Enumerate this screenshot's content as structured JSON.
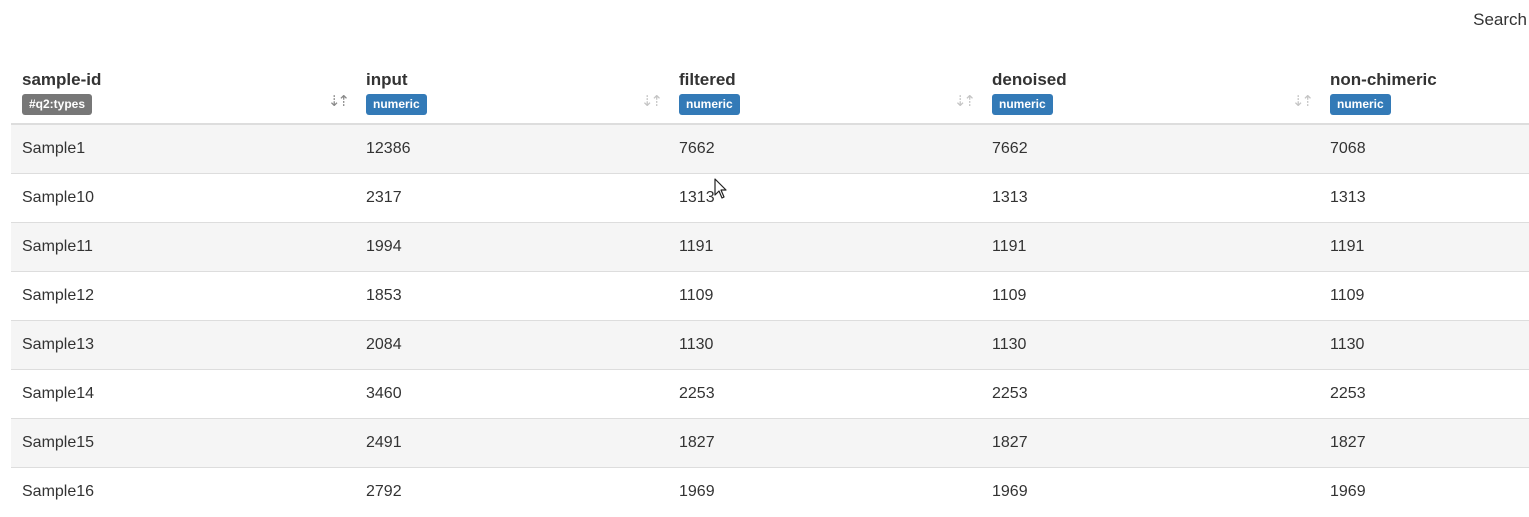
{
  "search": {
    "label": "Search"
  },
  "columns": [
    {
      "title": "sample-id",
      "badge": "#q2:types",
      "badge_type": "types",
      "sort_icon": "sort-numeric-asc-icon",
      "sort_active": true
    },
    {
      "title": "input",
      "badge": "numeric",
      "badge_type": "numeric",
      "sort_icon": "sort-icon",
      "sort_active": false
    },
    {
      "title": "filtered",
      "badge": "numeric",
      "badge_type": "numeric",
      "sort_icon": "sort-icon",
      "sort_active": false
    },
    {
      "title": "denoised",
      "badge": "numeric",
      "badge_type": "numeric",
      "sort_icon": "sort-icon",
      "sort_active": false
    },
    {
      "title": "non-chimeric",
      "badge": "numeric",
      "badge_type": "numeric",
      "sort_icon": "sort-icon",
      "sort_active": false
    }
  ],
  "rows": [
    [
      "Sample1",
      "12386",
      "7662",
      "7662",
      "7068"
    ],
    [
      "Sample10",
      "2317",
      "1313",
      "1313",
      "1313"
    ],
    [
      "Sample11",
      "1994",
      "1191",
      "1191",
      "1191"
    ],
    [
      "Sample12",
      "1853",
      "1109",
      "1109",
      "1109"
    ],
    [
      "Sample13",
      "2084",
      "1130",
      "1130",
      "1130"
    ],
    [
      "Sample14",
      "3460",
      "2253",
      "2253",
      "2253"
    ],
    [
      "Sample15",
      "2491",
      "1827",
      "1827",
      "1827"
    ],
    [
      "Sample16",
      "2792",
      "1969",
      "1969",
      "1969"
    ]
  ],
  "colors": {
    "badge_types": "#777777",
    "badge_numeric": "#337ab7",
    "stripe": "#f5f5f5"
  }
}
